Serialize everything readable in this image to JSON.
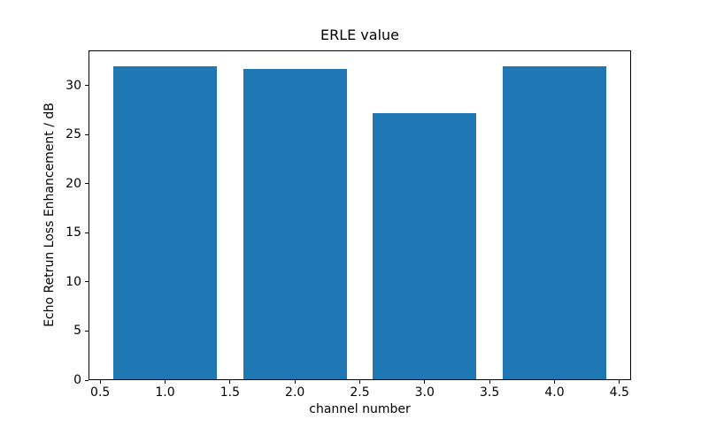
{
  "chart_data": {
    "type": "bar",
    "title": "ERLE value",
    "xlabel": "channel number",
    "ylabel": "Echo Retrun Loss Enhancement / dB",
    "x": [
      1,
      2,
      3,
      4
    ],
    "values": [
      32.0,
      31.7,
      27.2,
      32.0
    ],
    "bar_width": 0.8,
    "bar_color": "#1f77b4",
    "xlim": [
      0.41,
      4.59
    ],
    "ylim": [
      0,
      33.6
    ],
    "xticks": [
      0.5,
      1.0,
      1.5,
      2.0,
      2.5,
      3.0,
      3.5,
      4.0,
      4.5
    ],
    "xtick_labels": [
      "0.5",
      "1.0",
      "1.5",
      "2.0",
      "2.5",
      "3.0",
      "3.5",
      "4.0",
      "4.5"
    ],
    "yticks": [
      0,
      5,
      10,
      15,
      20,
      25,
      30
    ],
    "ytick_labels": [
      "0",
      "5",
      "10",
      "15",
      "20",
      "25",
      "30"
    ],
    "grid": false,
    "legend_position": "none",
    "background_color": "#ffffff",
    "spine_color": "#000000"
  }
}
